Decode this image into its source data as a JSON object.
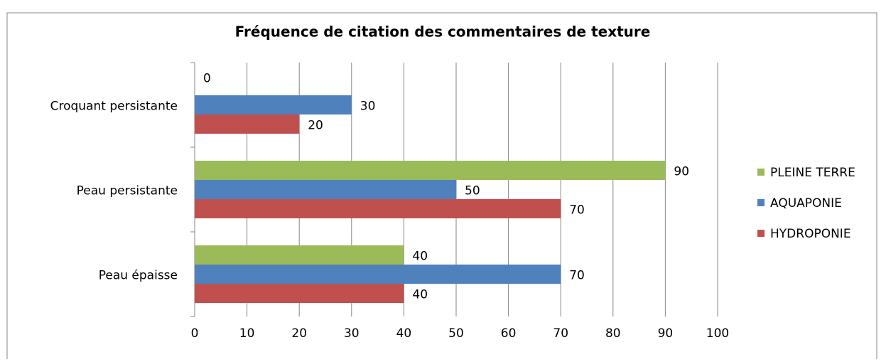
{
  "chart_data": {
    "type": "barh",
    "title": "Fréquence de citation des commentaires de texture",
    "categories": [
      "Croquant persistante",
      "Peau persistante",
      "Peau épaisse"
    ],
    "series": [
      {
        "name": "PLEINE TERRE",
        "color": "#9bbb59",
        "values": [
          0,
          90,
          40
        ]
      },
      {
        "name": "AQUAPONIE",
        "color": "#4f81bd",
        "values": [
          30,
          50,
          70
        ]
      },
      {
        "name": "HYDROPONIE",
        "color": "#c0504d",
        "values": [
          20,
          70,
          40
        ]
      }
    ],
    "xlim": [
      0,
      100
    ],
    "xticks": [
      0,
      10,
      20,
      30,
      40,
      50,
      60,
      70,
      80,
      90,
      100
    ],
    "grid": true,
    "legend": "right"
  }
}
